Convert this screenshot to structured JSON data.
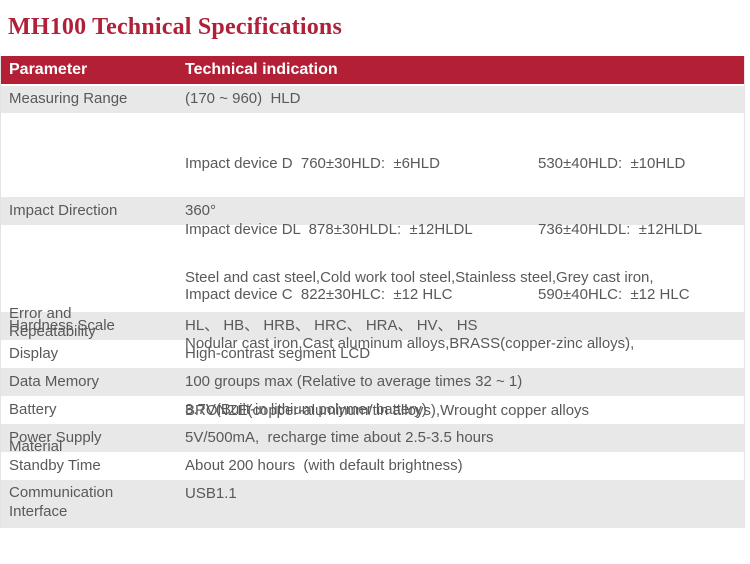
{
  "page": {
    "title": "MH100 Technical Specifications"
  },
  "colors": {
    "accent_red": "#b32036",
    "title_red": "#b02038",
    "row_shade_gray": "#e8e8e8",
    "body_text": "#58595b",
    "header_text": "#ffffff"
  },
  "table": {
    "headers": [
      "Parameter",
      "Technical indication"
    ],
    "rows": [
      {
        "param": "Measuring Range",
        "value": "(170 ~ 960)  HLD"
      },
      {
        "param": "Error and\nRepeatability",
        "pairs": [
          {
            "left": "Impact device D  760±30HLD:  ±6HLD",
            "right": "530±40HLD:  ±10HLD"
          },
          {
            "left": "Impact device DL  878±30HLDL:  ±12HLDL",
            "right": "736±40HLDL:  ±12HLDL"
          },
          {
            "left": "Impact device C  822±30HLC:  ±12 HLC",
            "right": "590±40HLC:  ±12 HLC"
          }
        ]
      },
      {
        "param": "Impact Direction",
        "value": "360°"
      },
      {
        "param": "Material",
        "lines": [
          "Steel and cast steel,Cold work tool steel,Stainless steel,Grey cast iron,",
          "Nodular cast iron,Cast aluminum alloys,BRASS(copper-zinc alloys),",
          "BRONZE(copper-aluminum/tin alloys),Wrought copper alloys"
        ]
      },
      {
        "param": "Hardness Scale",
        "value": "HL、 HB、 HRB、 HRC、 HRA、 HV、 HS"
      },
      {
        "param": "Display",
        "value": "High-contrast segment LCD"
      },
      {
        "param": "Data Memory",
        "value": "100 groups max (Relative to average times 32 ~ 1)"
      },
      {
        "param": "Battery",
        "value": "3.7V(Built-in lithium polymer battery)"
      },
      {
        "param": "Power Supply",
        "value": "5V/500mA,  recharge time about 2.5-3.5 hours"
      },
      {
        "param": "Standby Time",
        "value": "About 200 hours  (with default brightness)"
      },
      {
        "param": "Communication\nInterface",
        "value": "USB1.1"
      }
    ]
  }
}
